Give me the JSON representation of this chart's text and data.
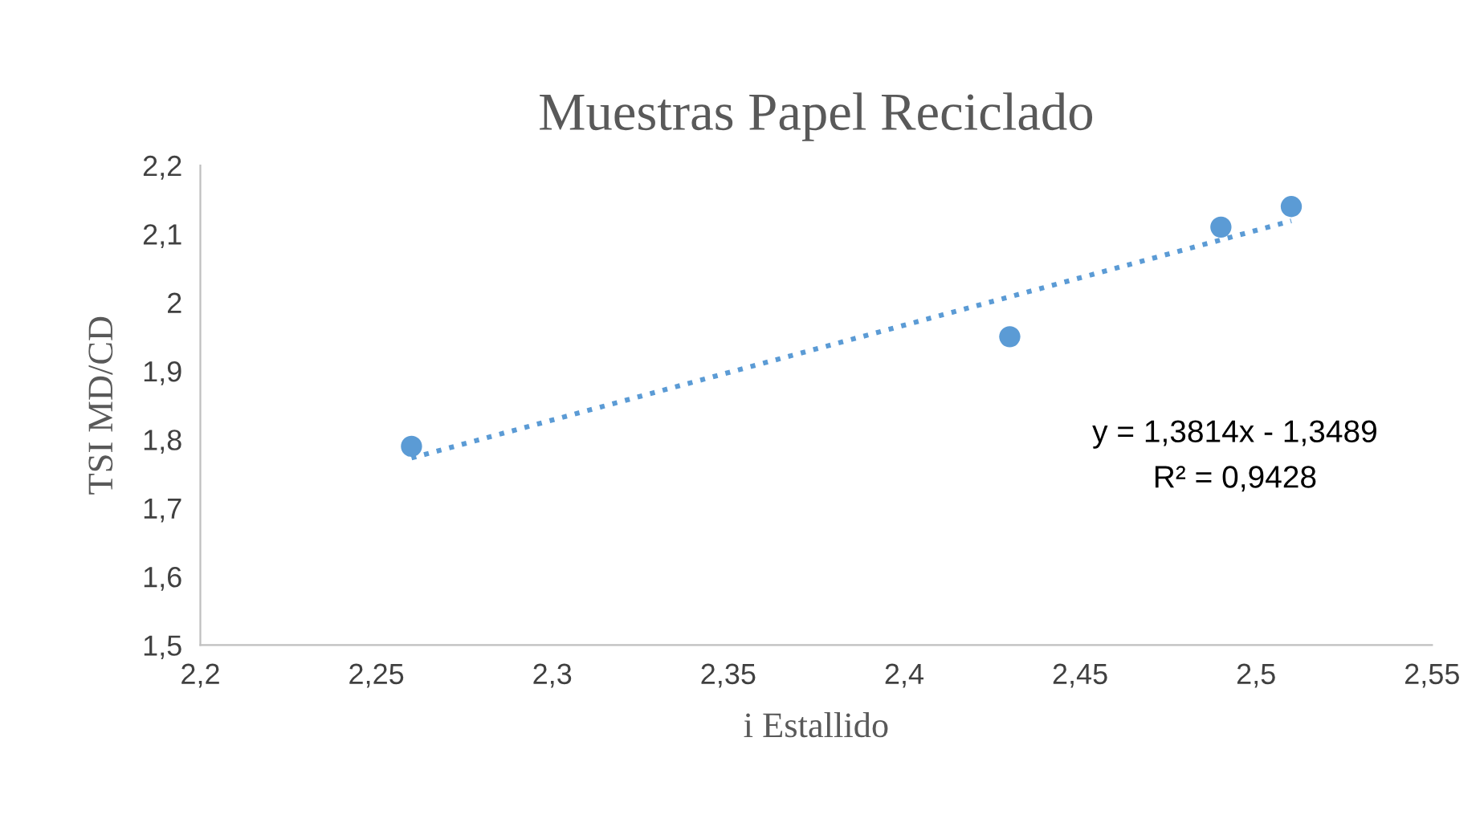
{
  "chart_data": {
    "type": "scatter",
    "title": "Muestras Papel Reciclado",
    "xlabel": "i Estallido",
    "ylabel": "TSI MD/CD",
    "series": [
      {
        "color": "#5b9bd5",
        "marker": "circle",
        "x": [
          2.26,
          2.43,
          2.49,
          2.51
        ],
        "values": [
          1.79,
          1.95,
          2.11,
          2.14
        ]
      },
      {
        "type": "line",
        "color": "#5b9bd5",
        "line_style": "dotted",
        "marker": "none",
        "x": [
          2.26,
          2.51
        ],
        "values": [
          1.773,
          2.119
        ]
      }
    ],
    "annotations": [
      "y = 1,3814x - 1,3489",
      "R² = 0,9428"
    ],
    "xlim": [
      2.2,
      2.55
    ],
    "ylim": [
      1.5,
      2.2
    ],
    "xticks": [
      {
        "value": 2.2,
        "label": "2,2"
      },
      {
        "value": 2.25,
        "label": "2,25"
      },
      {
        "value": 2.3,
        "label": "2,3"
      },
      {
        "value": 2.35,
        "label": "2,35"
      },
      {
        "value": 2.4,
        "label": "2,4"
      },
      {
        "value": 2.45,
        "label": "2,45"
      },
      {
        "value": 2.5,
        "label": "2,5"
      },
      {
        "value": 2.55,
        "label": "2,55"
      }
    ],
    "yticks": [
      {
        "value": 1.5,
        "label": "1,5"
      },
      {
        "value": 1.6,
        "label": "1,6"
      },
      {
        "value": 1.7,
        "label": "1,7"
      },
      {
        "value": 1.8,
        "label": "1,8"
      },
      {
        "value": 1.9,
        "label": "1,9"
      },
      2,
      {
        "value": 2.1,
        "label": "2,1"
      },
      {
        "value": 2.2,
        "label": "2,2"
      }
    ],
    "grid": false,
    "legend": false
  }
}
